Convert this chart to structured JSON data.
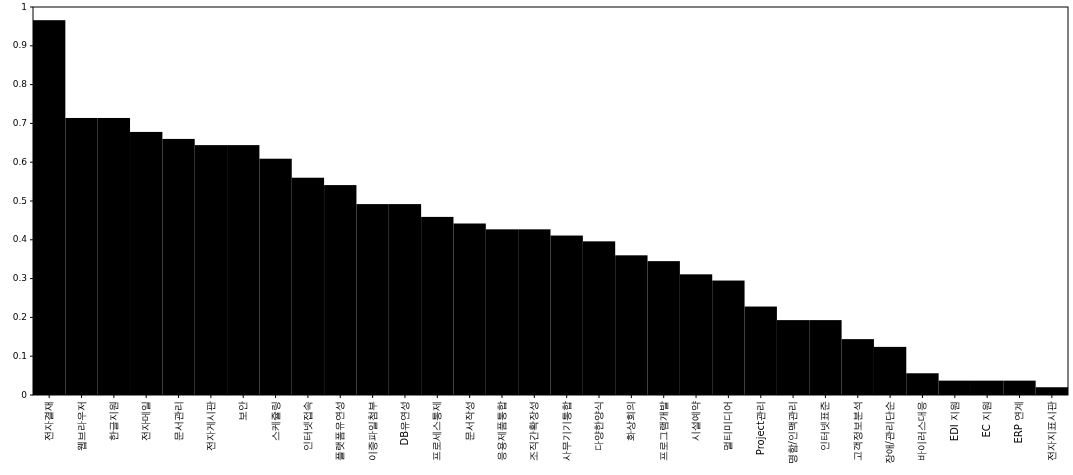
{
  "chart_data": {
    "type": "bar",
    "categories": [
      "전자결재",
      "웹브라우저",
      "한글지원",
      "전자메일",
      "문서관리",
      "전자게시판",
      "보안",
      "스케쥴링",
      "인터넷접속",
      "플랫폼유연성",
      "이종파일첨부",
      "DB유연성",
      "프로세스통제",
      "문서작성",
      "응용제품통합",
      "조직간확장성",
      "사무기기통합",
      "다양한양식",
      "화상회의",
      "프로그램개발",
      "시설예약",
      "멀티미디어",
      "Project관리",
      "명함/인맥관리",
      "인터넷표준",
      "고객정보분석",
      "장애/관리단순",
      "바이러스대응",
      "EDI 지원",
      "EC 지원",
      "ERP 연계",
      "전자지표시판"
    ],
    "values": [
      0.966,
      0.714,
      0.714,
      0.678,
      0.66,
      0.644,
      0.644,
      0.609,
      0.56,
      0.541,
      0.492,
      0.492,
      0.459,
      0.442,
      0.427,
      0.427,
      0.411,
      0.396,
      0.36,
      0.345,
      0.311,
      0.295,
      0.228,
      0.193,
      0.193,
      0.144,
      0.124,
      0.056,
      0.037,
      0.037,
      0.037,
      0.02
    ],
    "color": "#000000",
    "ylim": [
      0,
      1
    ],
    "yticks": [
      0,
      0.1,
      0.2,
      0.3,
      0.4,
      0.5,
      0.6,
      0.7,
      0.8,
      0.9,
      1
    ],
    "grid": false
  }
}
